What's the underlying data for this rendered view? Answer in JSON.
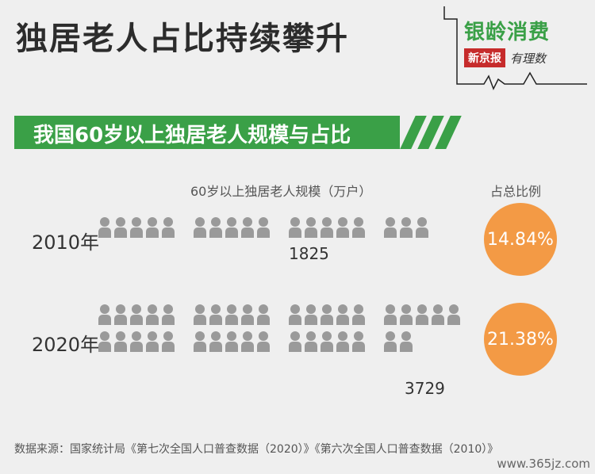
{
  "title": "独居老人占比持续攀升",
  "brand": {
    "name": "银龄消费",
    "tag": "新京报",
    "extra": "有理数"
  },
  "subtitle": "我国60岁以上独居老人规模与占比",
  "colors": {
    "green": "#3aa047",
    "orange": "#f39a45",
    "person": "#9a9a9a",
    "red": "#c62b2b"
  },
  "icon": "person-icon",
  "chart_data": {
    "type": "pictogram",
    "title": "我国60岁以上独居老人规模与占比",
    "columns": [
      "60岁以上独居老人规模（万户）",
      "占总比例"
    ],
    "categories": [
      "2010年",
      "2020年"
    ],
    "series": [
      {
        "name": "60岁以上独居老人规模（万户）",
        "values": [
          1825,
          3729
        ]
      },
      {
        "name": "占总比例",
        "values": [
          "14.84%",
          "21.38%"
        ]
      }
    ]
  },
  "source": "数据来源：国家统计局《第七次全国人口普查数据（2020）》《第六次全国人口普查数据（2010）》",
  "watermark": "www.365jz.com"
}
